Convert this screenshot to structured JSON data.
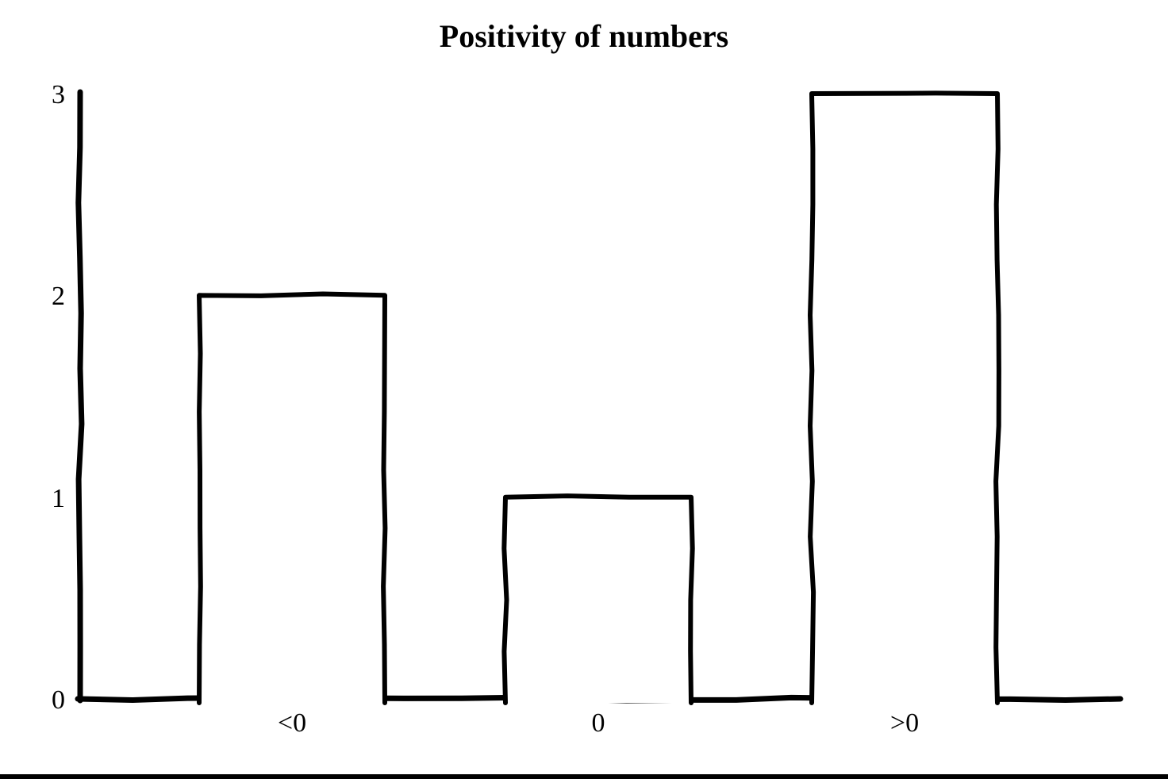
{
  "page": {
    "background_color": "#ffffff",
    "bottom_rule_color": "#000000"
  },
  "chart_data": {
    "type": "bar",
    "title": "Positivity of numbers",
    "categories": [
      "<0",
      "0",
      ">0"
    ],
    "values": [
      2,
      1,
      3
    ],
    "yticks": [
      "0",
      "1",
      "2",
      "3"
    ],
    "ylim": [
      0,
      3
    ],
    "xlabel": "",
    "ylabel": "",
    "grid": false,
    "legend": false,
    "style": "hand-drawn-xkcd",
    "bar_fill_color": "#ffffff",
    "bar_edge_color": "#000000",
    "axis_color": "#000000",
    "text_color": "#000000"
  }
}
